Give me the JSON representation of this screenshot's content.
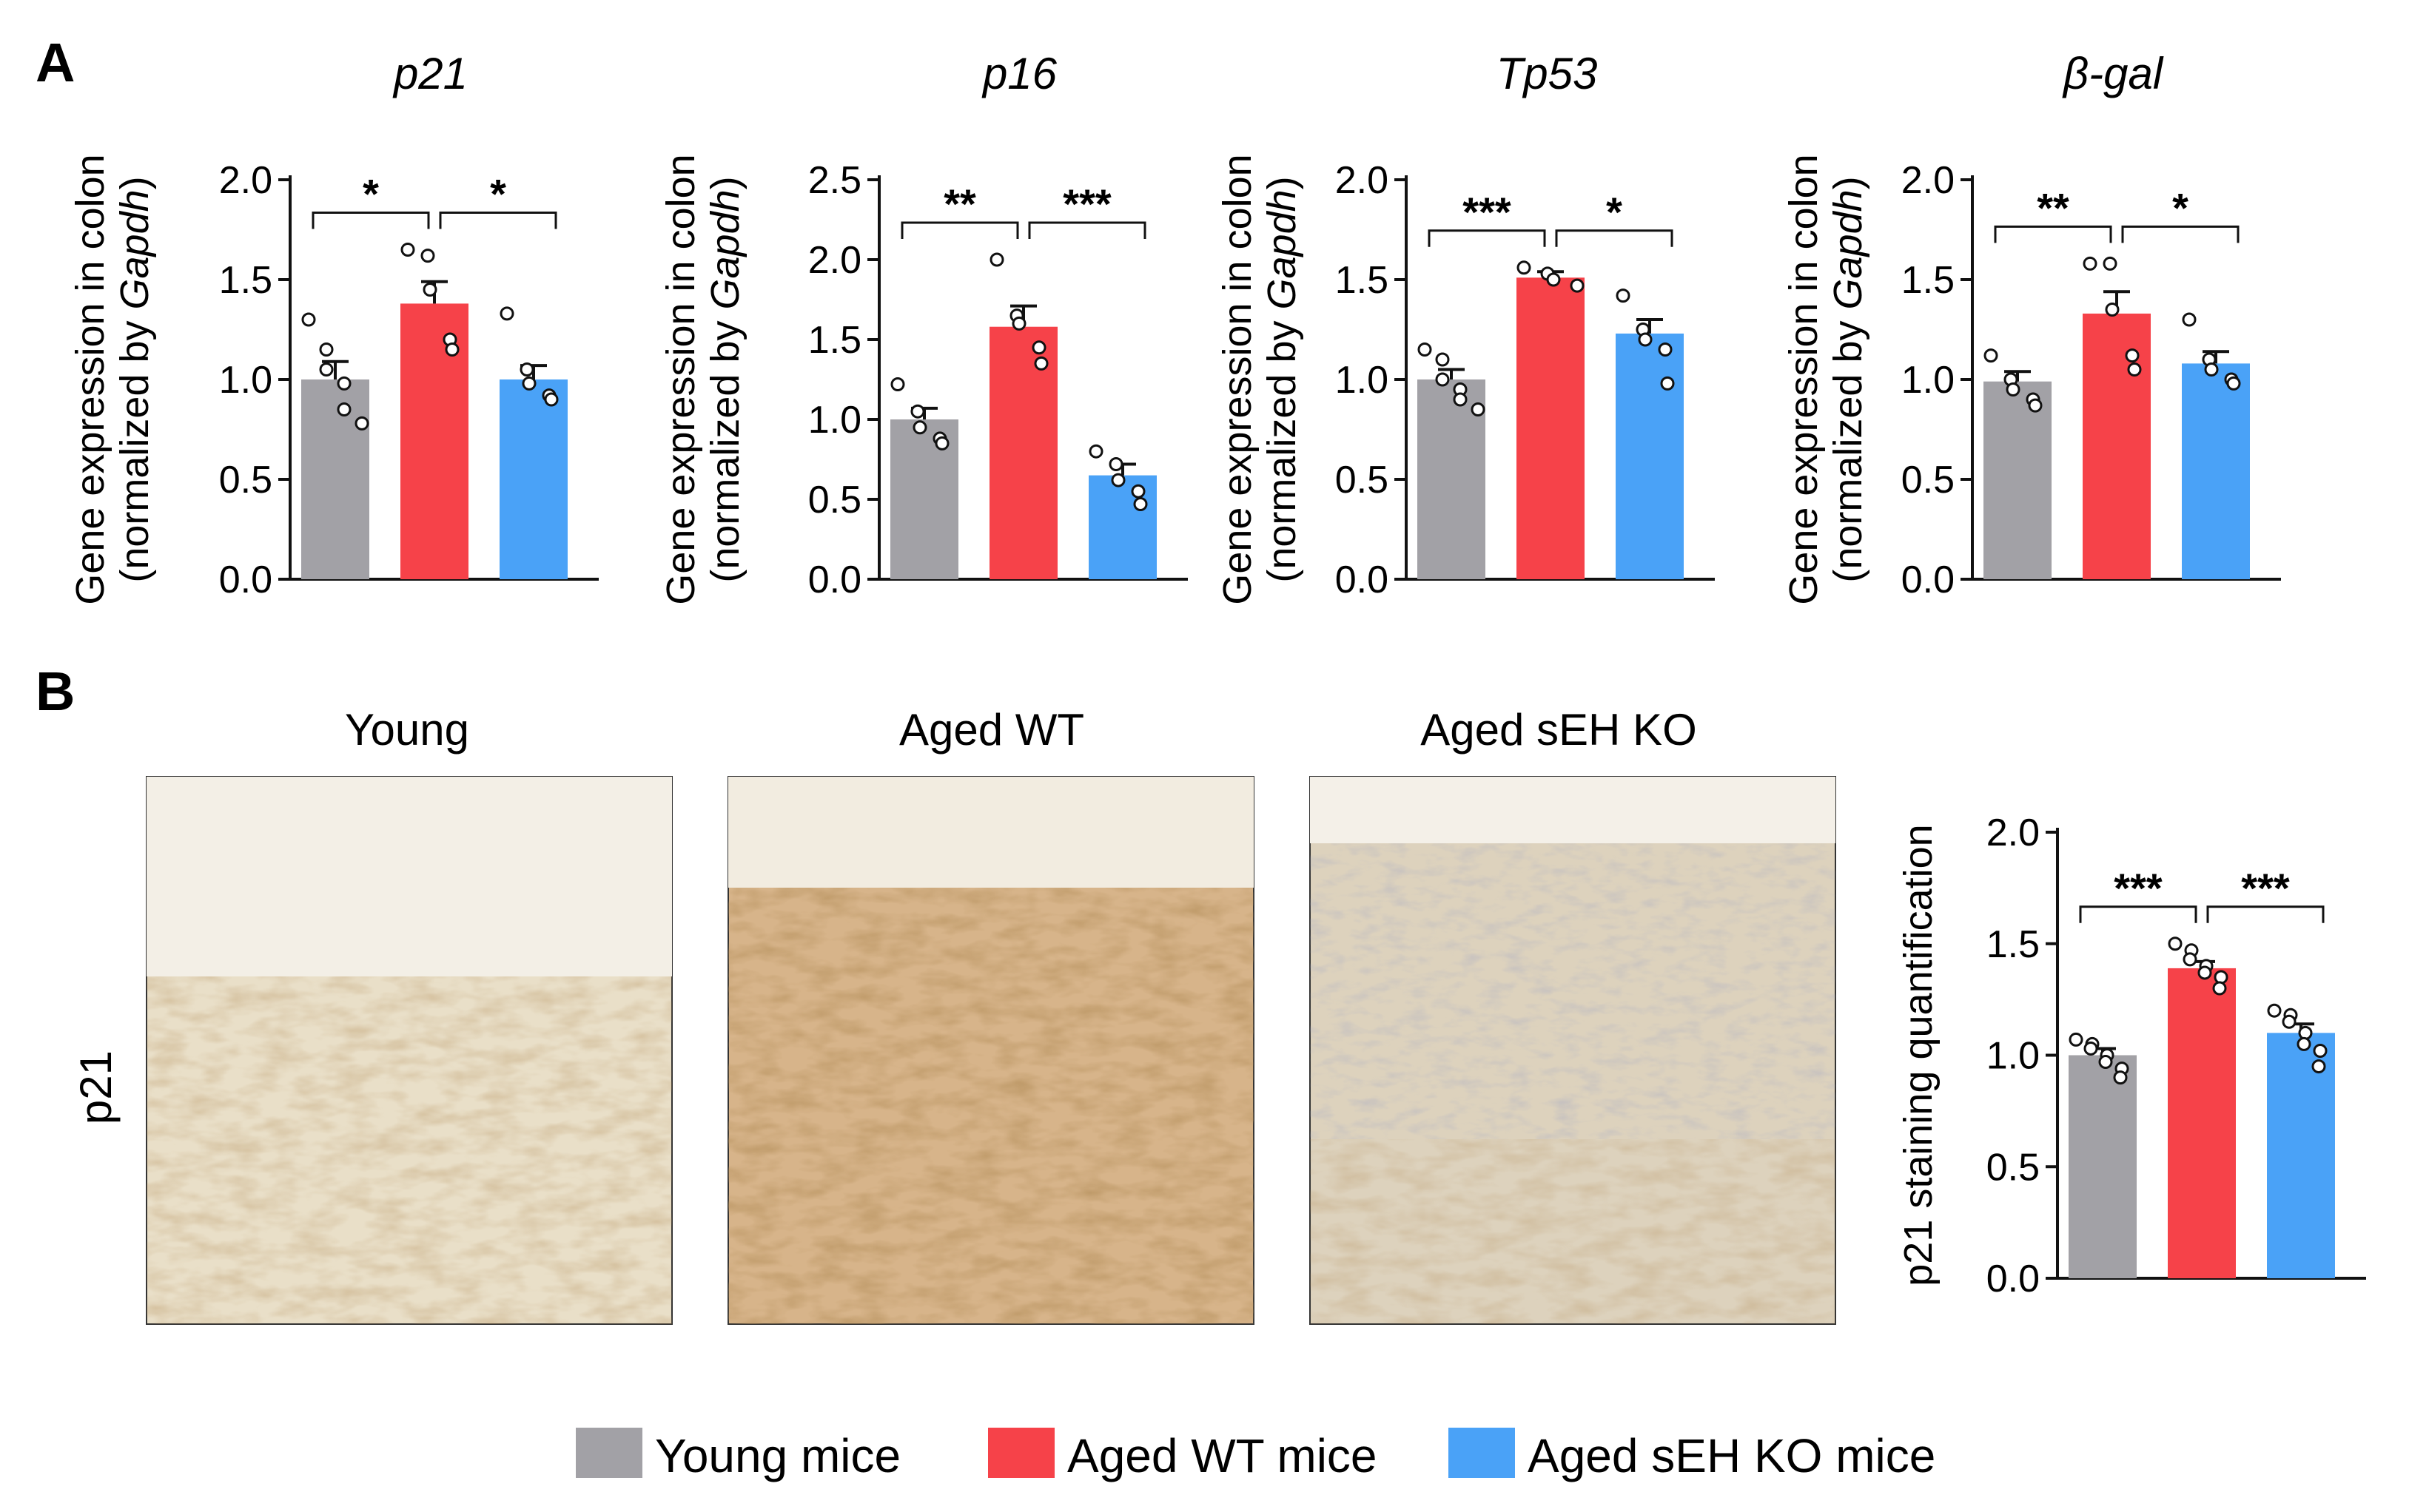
{
  "panels": {
    "a": "A",
    "b": "B"
  },
  "colors": {
    "young": "#a2a1a6",
    "aged_wt": "#f64249",
    "aged_ko": "#4aa2f7",
    "text": "#111111"
  },
  "panel_a_ylabel": {
    "line1": "Gene expression in colon",
    "line2_prefix": "(normalized by ",
    "line2_gene": "Gapdh",
    "line2_suffix": ")"
  },
  "micrographs": {
    "row_label": "p21",
    "titles": [
      "Young",
      "Aged WT",
      "Aged sEH KO"
    ],
    "tones": [
      "#e6dac2",
      "#c89a66",
      "#d6c9b0"
    ]
  },
  "legend": {
    "items": [
      {
        "label": "Young mice",
        "color": "#a2a1a6"
      },
      {
        "label": "Aged WT mice",
        "color": "#f64249"
      },
      {
        "label": "Aged sEH KO mice",
        "color": "#4aa2f7"
      }
    ]
  },
  "chart_data": [
    {
      "type": "bar",
      "title": "p21",
      "ylabel": "Gene expression in colon (normalized by Gapdh)",
      "categories": [
        "Young mice",
        "Aged WT mice",
        "Aged sEH KO mice"
      ],
      "values": [
        1.0,
        1.38,
        1.0
      ],
      "errors": [
        0.09,
        0.11,
        0.07
      ],
      "points": [
        [
          1.3,
          1.15,
          1.05,
          0.98,
          0.85,
          0.78
        ],
        [
          1.65,
          1.62,
          1.45,
          1.2,
          1.15
        ],
        [
          1.33,
          1.05,
          0.98,
          0.92,
          0.9
        ]
      ],
      "ylim": [
        0,
        2.0
      ],
      "yticks": [
        "0.0",
        "0.5",
        "1.0",
        "1.5",
        "2.0"
      ],
      "significance": [
        {
          "from": 0,
          "to": 1,
          "label": "*"
        },
        {
          "from": 1,
          "to": 2,
          "label": "*"
        }
      ]
    },
    {
      "type": "bar",
      "title": "p16",
      "ylabel": "Gene expression in colon (normalized by Gapdh)",
      "categories": [
        "Young mice",
        "Aged WT mice",
        "Aged sEH KO mice"
      ],
      "values": [
        1.0,
        1.58,
        0.65
      ],
      "errors": [
        0.07,
        0.13,
        0.07
      ],
      "points": [
        [
          1.22,
          1.05,
          0.95,
          0.88,
          0.85
        ],
        [
          2.0,
          1.65,
          1.6,
          1.45,
          1.35
        ],
        [
          0.8,
          0.72,
          0.62,
          0.55,
          0.47
        ]
      ],
      "ylim": [
        0,
        2.5
      ],
      "yticks": [
        "0.0",
        "0.5",
        "1.0",
        "1.5",
        "2.0",
        "2.5"
      ],
      "significance": [
        {
          "from": 0,
          "to": 1,
          "label": "**"
        },
        {
          "from": 1,
          "to": 2,
          "label": "***"
        }
      ]
    },
    {
      "type": "bar",
      "title": "Tp53",
      "ylabel": "Gene expression in colon (normalized by Gapdh)",
      "categories": [
        "Young mice",
        "Aged WT mice",
        "Aged sEH KO mice"
      ],
      "values": [
        1.0,
        1.51,
        1.23
      ],
      "errors": [
        0.05,
        0.03,
        0.07
      ],
      "points": [
        [
          1.15,
          1.1,
          1.0,
          0.95,
          0.9,
          0.85
        ],
        [
          1.56,
          1.53,
          1.5,
          1.47
        ],
        [
          1.42,
          1.25,
          1.2,
          1.15,
          0.98
        ]
      ],
      "ylim": [
        0,
        2.0
      ],
      "yticks": [
        "0.0",
        "0.5",
        "1.0",
        "1.5",
        "2.0"
      ],
      "significance": [
        {
          "from": 0,
          "to": 1,
          "label": "***"
        },
        {
          "from": 1,
          "to": 2,
          "label": "*"
        }
      ]
    },
    {
      "type": "bar",
      "title": "β-gal",
      "ylabel": "Gene expression in colon (normalized by Gapdh)",
      "categories": [
        "Young mice",
        "Aged WT mice",
        "Aged sEH KO mice"
      ],
      "values": [
        0.99,
        1.33,
        1.08
      ],
      "errors": [
        0.05,
        0.11,
        0.06
      ],
      "points": [
        [
          1.12,
          1.0,
          0.95,
          0.9,
          0.87
        ],
        [
          1.58,
          1.58,
          1.35,
          1.12,
          1.05
        ],
        [
          1.3,
          1.1,
          1.05,
          1.0,
          0.98
        ]
      ],
      "ylim": [
        0,
        2.0
      ],
      "yticks": [
        "0.0",
        "0.5",
        "1.0",
        "1.5",
        "2.0"
      ],
      "significance": [
        {
          "from": 0,
          "to": 1,
          "label": "**"
        },
        {
          "from": 1,
          "to": 2,
          "label": "*"
        }
      ]
    },
    {
      "type": "bar",
      "title": "",
      "ylabel": "p21 staining quantification",
      "categories": [
        "Young mice",
        "Aged WT mice",
        "Aged sEH KO mice"
      ],
      "values": [
        1.0,
        1.39,
        1.1
      ],
      "errors": [
        0.03,
        0.03,
        0.04
      ],
      "points": [
        [
          1.07,
          1.05,
          1.03,
          1.0,
          0.97,
          0.94,
          0.9
        ],
        [
          1.5,
          1.47,
          1.43,
          1.4,
          1.37,
          1.35,
          1.3
        ],
        [
          1.2,
          1.18,
          1.15,
          1.1,
          1.05,
          1.02,
          0.95
        ]
      ],
      "ylim": [
        0,
        2.0
      ],
      "yticks": [
        "0.0",
        "0.5",
        "1.0",
        "1.5",
        "2.0"
      ],
      "significance": [
        {
          "from": 0,
          "to": 1,
          "label": "***"
        },
        {
          "from": 1,
          "to": 2,
          "label": "***"
        }
      ]
    }
  ]
}
